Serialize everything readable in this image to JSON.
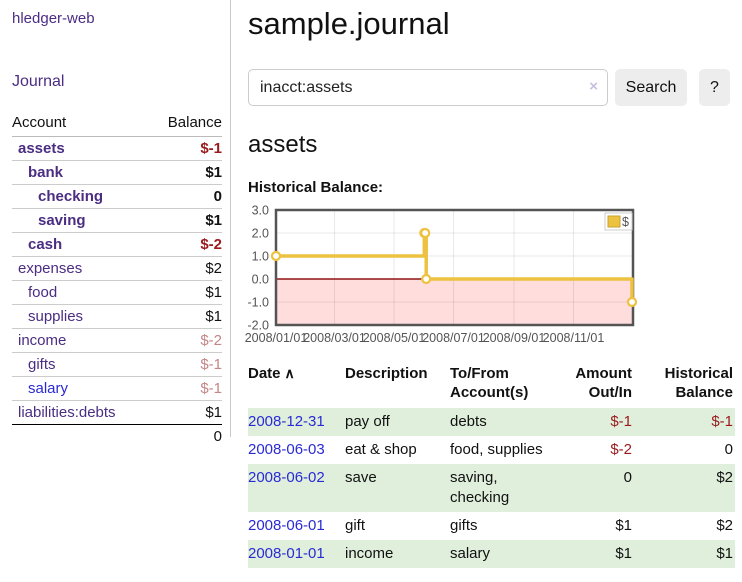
{
  "colors": {
    "purple_link": "#4b2d83",
    "blue_link": "#2a2ad5",
    "negative": "#9a1a1e",
    "negative_muted": "#c58686",
    "row_stripe_green": "#e0efdc"
  },
  "app": {
    "brand": "hledger-web",
    "nav_journal": "Journal"
  },
  "sidebar": {
    "headers": {
      "account": "Account",
      "balance": "Balance"
    },
    "accounts": [
      {
        "name": "assets",
        "balance": "$-1",
        "level": 0,
        "bold": true,
        "neg": "strong"
      },
      {
        "name": "bank",
        "balance": "$1",
        "level": 1,
        "bold": true
      },
      {
        "name": "checking",
        "balance": "0",
        "level": 2,
        "bold": true
      },
      {
        "name": "saving",
        "balance": "$1",
        "level": 2,
        "bold": true
      },
      {
        "name": "cash",
        "balance": "$-2",
        "level": 1,
        "bold": true,
        "neg": "strong"
      },
      {
        "name": "expenses",
        "balance": "$2",
        "level": 0
      },
      {
        "name": "food",
        "balance": "$1",
        "level": 1
      },
      {
        "name": "supplies",
        "balance": "$1",
        "level": 1
      },
      {
        "name": "income",
        "balance": "$-2",
        "level": 0,
        "neg": "muted"
      },
      {
        "name": "gifts",
        "balance": "$-1",
        "level": 1,
        "neg": "muted"
      },
      {
        "name": "salary",
        "balance": "$-1",
        "level": 1,
        "neg": "muted",
        "link": "blue"
      },
      {
        "name": "liabilities:debts",
        "balance": "$1",
        "level": 0,
        "last": true
      }
    ],
    "total": "0"
  },
  "main": {
    "title": "sample.journal",
    "search": {
      "value": "inacct:assets",
      "clear_icon": "×",
      "button": "Search",
      "help_button": "?"
    },
    "account_heading": "assets",
    "chart_label": "Historical Balance:"
  },
  "chart_data": {
    "type": "line",
    "step": true,
    "title": "Historical Balance of assets",
    "series": [
      {
        "name": "$",
        "color": "#EDC240",
        "points": [
          [
            "2008-01-01",
            1
          ],
          [
            "2008-06-01",
            2
          ],
          [
            "2008-06-02",
            2
          ],
          [
            "2008-06-03",
            0
          ],
          [
            "2008-12-31",
            -1
          ]
        ]
      }
    ],
    "xrange": [
      "2008-01-01",
      "2009-01-01"
    ],
    "ylim": [
      -2,
      3
    ],
    "yticks": [
      3.0,
      2.0,
      1.0,
      0.0,
      -1.0,
      -2.0
    ],
    "xticks": [
      "2008/01/01",
      "2008/03/01",
      "2008/05/01",
      "2008/07/01",
      "2008/09/01",
      "2008/11/01"
    ],
    "legend": {
      "label": "$",
      "position": "top-right"
    },
    "negative_fill": "#ffdddd",
    "zero_line_color": "#8f1515",
    "grid": true
  },
  "register": {
    "headers": {
      "date": "Date",
      "sort_icon": "∧",
      "description": "Description",
      "accounts_l1": "To/From",
      "accounts_l2": "Account(s)",
      "amount_l1": "Amount",
      "amount_l2": "Out/In",
      "balance_l1": "Historical",
      "balance_l2": "Balance"
    },
    "rows": [
      {
        "date": "2008-12-31",
        "description": "pay off",
        "accounts": "debts",
        "amount": "$-1",
        "amount_neg": true,
        "balance": "$-1",
        "balance_neg": true
      },
      {
        "date": "2008-06-03",
        "description": "eat & shop",
        "accounts": "food, supplies",
        "amount": "$-2",
        "amount_neg": true,
        "balance": "0"
      },
      {
        "date": "2008-06-02",
        "description": "save",
        "accounts": "saving, checking",
        "amount": "0",
        "balance": "$2"
      },
      {
        "date": "2008-06-01",
        "description": "gift",
        "accounts": "gifts",
        "amount": "$1",
        "balance": "$2"
      },
      {
        "date": "2008-01-01",
        "description": "income",
        "accounts": "salary",
        "amount": "$1",
        "balance": "$1"
      }
    ]
  }
}
